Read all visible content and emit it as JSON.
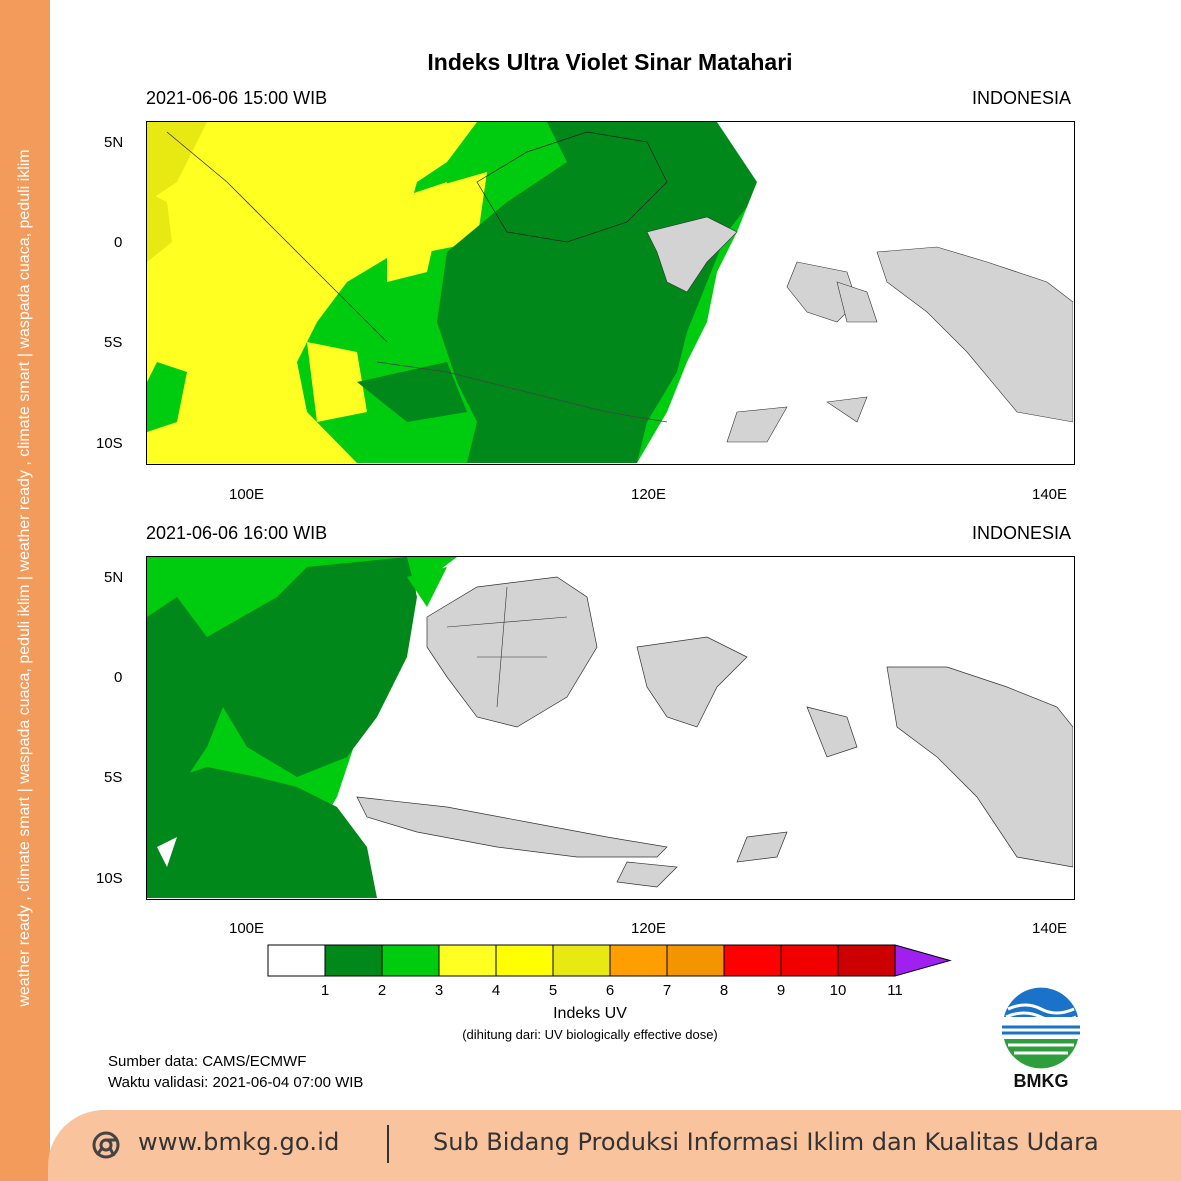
{
  "side_strip": {
    "text": "weather ready , climate smart   |   waspada cuaca, peduli iklim   |   weather ready , climate smart   |   waspada cuaca, peduli iklim"
  },
  "title": "Indeks Ultra Violet Sinar Matahari",
  "panels": [
    {
      "datetime": "2021-06-06  15:00 WIB",
      "region": "INDONESIA"
    },
    {
      "datetime": "2021-06-06  16:00 WIB",
      "region": "INDONESIA"
    }
  ],
  "axes": {
    "lat_labels": [
      "5N",
      "0",
      "5S",
      "10S"
    ],
    "lon_labels": [
      "100E",
      "120E",
      "140E"
    ]
  },
  "colorbar": {
    "labels": [
      "1",
      "2",
      "3",
      "4",
      "5",
      "6",
      "7",
      "8",
      "9",
      "10",
      "11"
    ],
    "colors": [
      "#ffffff",
      "#00881a",
      "#00cc0f",
      "#ffff22",
      "#ffff00",
      "#e8e812",
      "#ff9e00",
      "#f29500",
      "#ff0000",
      "#f20000",
      "#cc0000",
      "#a020f0"
    ],
    "title": "Indeks UV",
    "subtitle": "(dihitung dari: UV biologically effective dose)"
  },
  "source": {
    "data_source": "Sumber data: CAMS/ECMWF",
    "validation_time": "Waktu validasi: 2021-06-04 07:00 WIB"
  },
  "logo": {
    "text": "BMKG"
  },
  "footer": {
    "icon": "globe-icon",
    "url": "www.bmkg.go.id",
    "description": "Sub Bidang Produksi Informasi Iklim dan Kualitas Udara"
  }
}
